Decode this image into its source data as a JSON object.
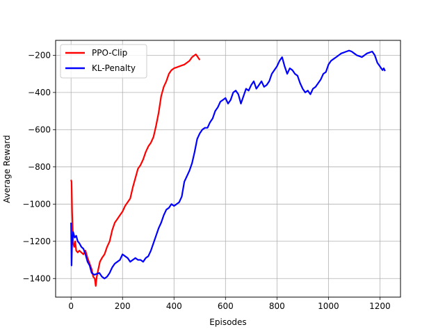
{
  "chart_data": {
    "type": "line",
    "title": "",
    "xlabel": "Episodes",
    "ylabel": "Average Reward",
    "xlim": [
      -60,
      1280
    ],
    "ylim": [
      -1500,
      -120
    ],
    "xticks": [
      0,
      200,
      400,
      600,
      800,
      1000,
      1200
    ],
    "yticks": [
      -1400,
      -1200,
      -1000,
      -800,
      -600,
      -400,
      -200
    ],
    "grid": true,
    "legend_position": "upper-left",
    "series": [
      {
        "name": "PPO-Clip",
        "color": "#ff0000",
        "x": [
          0,
          2,
          4,
          8,
          12,
          16,
          20,
          26,
          32,
          40,
          48,
          56,
          64,
          72,
          80,
          86,
          92,
          96,
          100,
          106,
          112,
          120,
          130,
          140,
          150,
          160,
          170,
          180,
          190,
          200,
          210,
          220,
          230,
          240,
          250,
          260,
          270,
          280,
          290,
          300,
          310,
          320,
          330,
          340,
          350,
          360,
          370,
          380,
          390,
          400,
          410,
          420,
          430,
          440,
          450,
          460,
          470,
          480,
          485,
          490,
          495,
          500
        ],
        "y": [
          -870,
          -880,
          -1040,
          -1210,
          -1230,
          -1200,
          -1250,
          -1260,
          -1250,
          -1260,
          -1270,
          -1250,
          -1290,
          -1320,
          -1350,
          -1390,
          -1400,
          -1440,
          -1390,
          -1350,
          -1310,
          -1290,
          -1270,
          -1230,
          -1200,
          -1140,
          -1100,
          -1080,
          -1060,
          -1040,
          -1010,
          -990,
          -970,
          -910,
          -860,
          -810,
          -790,
          -760,
          -720,
          -690,
          -670,
          -640,
          -580,
          -510,
          -420,
          -370,
          -340,
          -300,
          -280,
          -270,
          -265,
          -260,
          -255,
          -250,
          -240,
          -230,
          -210,
          -200,
          -195,
          -205,
          -215,
          -225
        ]
      },
      {
        "name": "KL-Penalty",
        "color": "#0000ff",
        "x": [
          0,
          2,
          4,
          8,
          14,
          20,
          26,
          32,
          40,
          48,
          56,
          64,
          72,
          80,
          90,
          100,
          110,
          120,
          130,
          140,
          150,
          160,
          170,
          180,
          190,
          200,
          210,
          220,
          230,
          240,
          250,
          260,
          270,
          280,
          290,
          300,
          310,
          320,
          330,
          340,
          350,
          360,
          370,
          380,
          390,
          400,
          410,
          420,
          430,
          440,
          450,
          460,
          470,
          480,
          490,
          500,
          510,
          520,
          530,
          540,
          550,
          560,
          570,
          580,
          590,
          600,
          610,
          620,
          630,
          640,
          650,
          660,
          670,
          680,
          690,
          700,
          710,
          720,
          730,
          740,
          750,
          760,
          770,
          780,
          790,
          800,
          810,
          820,
          830,
          840,
          850,
          860,
          870,
          880,
          890,
          900,
          910,
          920,
          930,
          940,
          950,
          960,
          970,
          980,
          990,
          1000,
          1010,
          1020,
          1030,
          1040,
          1050,
          1060,
          1070,
          1080,
          1090,
          1100,
          1110,
          1120,
          1130,
          1140,
          1150,
          1160,
          1170,
          1180,
          1190,
          1200,
          1210,
          1215,
          1220
        ],
        "y": [
          -1100,
          -1330,
          -1200,
          -1150,
          -1180,
          -1170,
          -1200,
          -1210,
          -1230,
          -1240,
          -1270,
          -1310,
          -1330,
          -1370,
          -1380,
          -1375,
          -1370,
          -1390,
          -1400,
          -1390,
          -1370,
          -1340,
          -1320,
          -1310,
          -1300,
          -1270,
          -1280,
          -1290,
          -1310,
          -1300,
          -1290,
          -1300,
          -1300,
          -1310,
          -1290,
          -1280,
          -1250,
          -1210,
          -1170,
          -1130,
          -1100,
          -1060,
          -1030,
          -1020,
          -1000,
          -1010,
          -1000,
          -990,
          -960,
          -880,
          -850,
          -820,
          -780,
          -720,
          -650,
          -620,
          -600,
          -590,
          -590,
          -560,
          -540,
          -500,
          -480,
          -450,
          -440,
          -430,
          -460,
          -440,
          -400,
          -390,
          -410,
          -460,
          -420,
          -380,
          -390,
          -360,
          -340,
          -380,
          -360,
          -340,
          -370,
          -360,
          -340,
          -300,
          -280,
          -260,
          -230,
          -210,
          -260,
          -300,
          -270,
          -280,
          -300,
          -310,
          -350,
          -380,
          -400,
          -390,
          -410,
          -380,
          -370,
          -350,
          -330,
          -300,
          -290,
          -250,
          -230,
          -220,
          -210,
          -200,
          -190,
          -185,
          -180,
          -175,
          -180,
          -190,
          -200,
          -205,
          -210,
          -200,
          -190,
          -185,
          -180,
          -200,
          -240,
          -260,
          -280,
          -270,
          -285
        ]
      }
    ]
  }
}
